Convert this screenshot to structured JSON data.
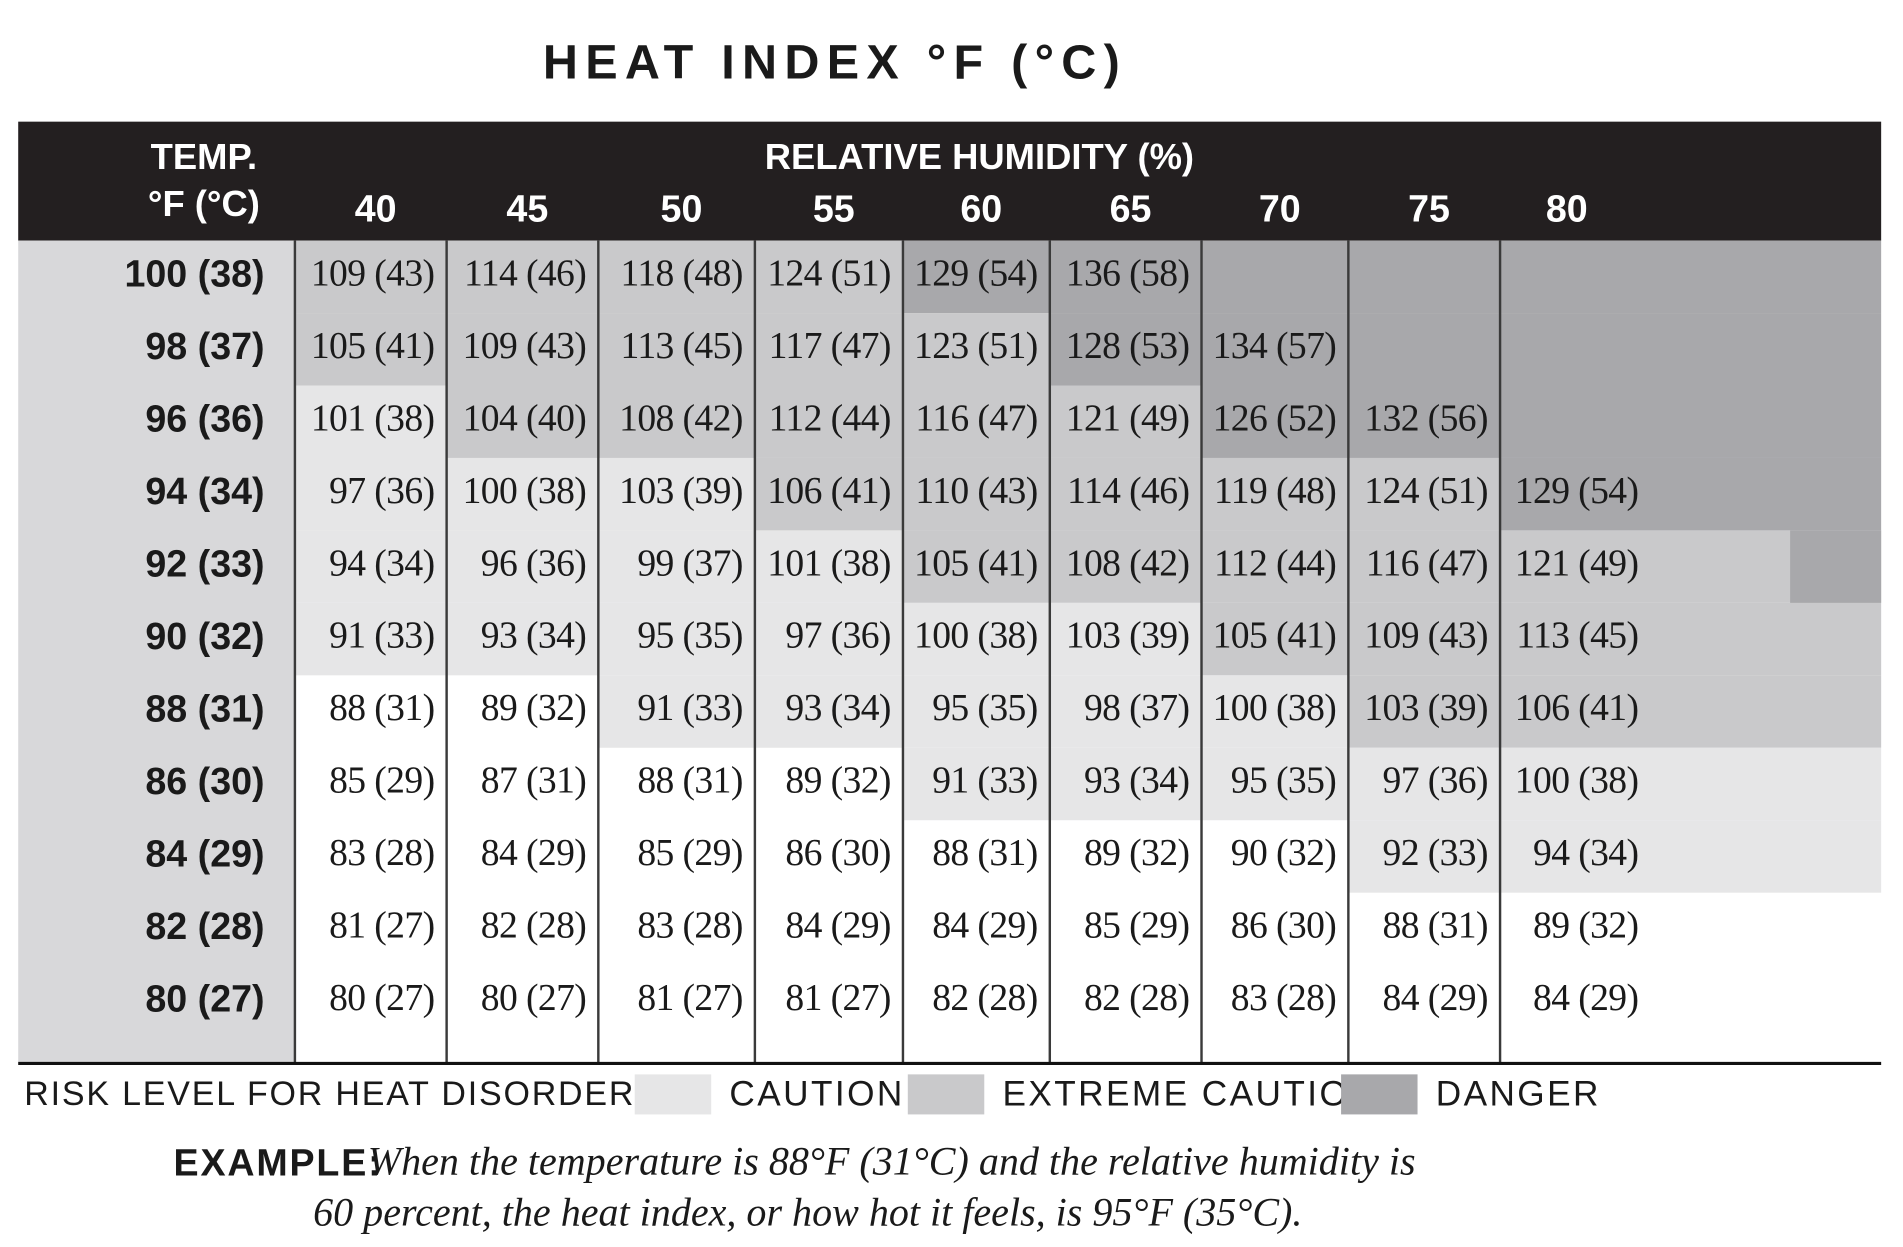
{
  "title": "HEAT INDEX °F (°C)",
  "header": {
    "temp_label": [
      "TEMP.",
      "°F (°C)"
    ],
    "humidity_label": "RELATIVE HUMIDITY (%)",
    "columns": [
      "40",
      "45",
      "50",
      "55",
      "60",
      "65",
      "70",
      "75",
      "80"
    ]
  },
  "table": {
    "rows": [
      {
        "temp": "100 (38)",
        "cells": [
          "109 (43)",
          "114 (46)",
          "118 (48)",
          "124 (51)",
          "129 (54)",
          "136 (58)"
        ],
        "risk": [
          1,
          1,
          1,
          1,
          2,
          2,
          2,
          2,
          2
        ]
      },
      {
        "temp": "98 (37)",
        "cells": [
          "105 (41)",
          "109 (43)",
          "113 (45)",
          "117 (47)",
          "123 (51)",
          "128 (53)",
          "134 (57)"
        ],
        "risk": [
          1,
          1,
          1,
          1,
          1,
          2,
          2,
          2,
          2
        ]
      },
      {
        "temp": "96 (36)",
        "cells": [
          "101 (38)",
          "104 (40)",
          "108 (42)",
          "112 (44)",
          "116 (47)",
          "121 (49)",
          "126 (52)",
          "132 (56)"
        ],
        "risk": [
          0,
          1,
          1,
          1,
          1,
          1,
          2,
          2,
          2
        ]
      },
      {
        "temp": "94 (34)",
        "cells": [
          "97 (36)",
          "100 (38)",
          "103 (39)",
          "106 (41)",
          "110 (43)",
          "114 (46)",
          "119 (48)",
          "124 (51)",
          "129 (54)"
        ],
        "risk": [
          0,
          0,
          0,
          1,
          1,
          1,
          1,
          1,
          2
        ]
      },
      {
        "temp": "92 (33)",
        "cells": [
          "94 (34)",
          "96 (36)",
          "99 (37)",
          "101 (38)",
          "105 (41)",
          "108 (42)",
          "112 (44)",
          "116 (47)",
          "121 (49)"
        ],
        "risk": [
          0,
          0,
          0,
          0,
          1,
          1,
          1,
          1,
          1
        ]
      },
      {
        "temp": "90 (32)",
        "cells": [
          "91 (33)",
          "93 (34)",
          "95 (35)",
          "97 (36)",
          "100 (38)",
          "103 (39)",
          "105 (41)",
          "109 (43)",
          "113 (45)"
        ],
        "risk": [
          0,
          0,
          0,
          0,
          0,
          0,
          1,
          1,
          1
        ]
      },
      {
        "temp": "88 (31)",
        "cells": [
          "88 (31)",
          "89 (32)",
          "91 (33)",
          "93 (34)",
          "95 (35)",
          "98 (37)",
          "100 (38)",
          "103 (39)",
          "106 (41)"
        ],
        "risk": [
          null,
          null,
          0,
          0,
          0,
          0,
          0,
          1,
          1
        ]
      },
      {
        "temp": "86 (30)",
        "cells": [
          "85 (29)",
          "87 (31)",
          "88 (31)",
          "89 (32)",
          "91 (33)",
          "93 (34)",
          "95 (35)",
          "97 (36)",
          "100 (38)"
        ],
        "risk": [
          null,
          null,
          null,
          null,
          0,
          0,
          0,
          0,
          0
        ]
      },
      {
        "temp": "84 (29)",
        "cells": [
          "83 (28)",
          "84 (29)",
          "85 (29)",
          "86 (30)",
          "88 (31)",
          "89 (32)",
          "90 (32)",
          "92 (33)",
          "94 (34)"
        ],
        "risk": [
          null,
          null,
          null,
          null,
          null,
          null,
          null,
          0,
          0
        ]
      },
      {
        "temp": "82 (28)",
        "cells": [
          "81 (27)",
          "82 (28)",
          "83 (28)",
          "84 (29)",
          "84 (29)",
          "85 (29)",
          "86 (30)",
          "88 (31)",
          "89 (32)"
        ],
        "risk": [
          null,
          null,
          null,
          null,
          null,
          null,
          null,
          null,
          null
        ]
      },
      {
        "temp": "80 (27)",
        "cells": [
          "80 (27)",
          "80 (27)",
          "81 (27)",
          "81 (27)",
          "82 (28)",
          "82 (28)",
          "83 (28)",
          "84 (29)",
          "84 (29)"
        ],
        "risk": [
          null,
          null,
          null,
          null,
          null,
          null,
          null,
          null,
          null
        ]
      }
    ]
  },
  "legend": {
    "title": "RISK LEVEL FOR HEAT DISORDERS:",
    "levels": [
      {
        "label": "CAUTION",
        "color": "#e6e6e7"
      },
      {
        "label": "EXTREME CAUTION",
        "color": "#c9c9cb"
      },
      {
        "label": "DANGER",
        "color": "#a8a8ab"
      }
    ]
  },
  "example": {
    "label": "EXAMPLE:",
    "lines": [
      "When the temperature is 88°F (31°C) and the relative humidity is",
      "60 percent, the heat index, or how hot it feels, is 95°F (35°C)."
    ]
  }
}
